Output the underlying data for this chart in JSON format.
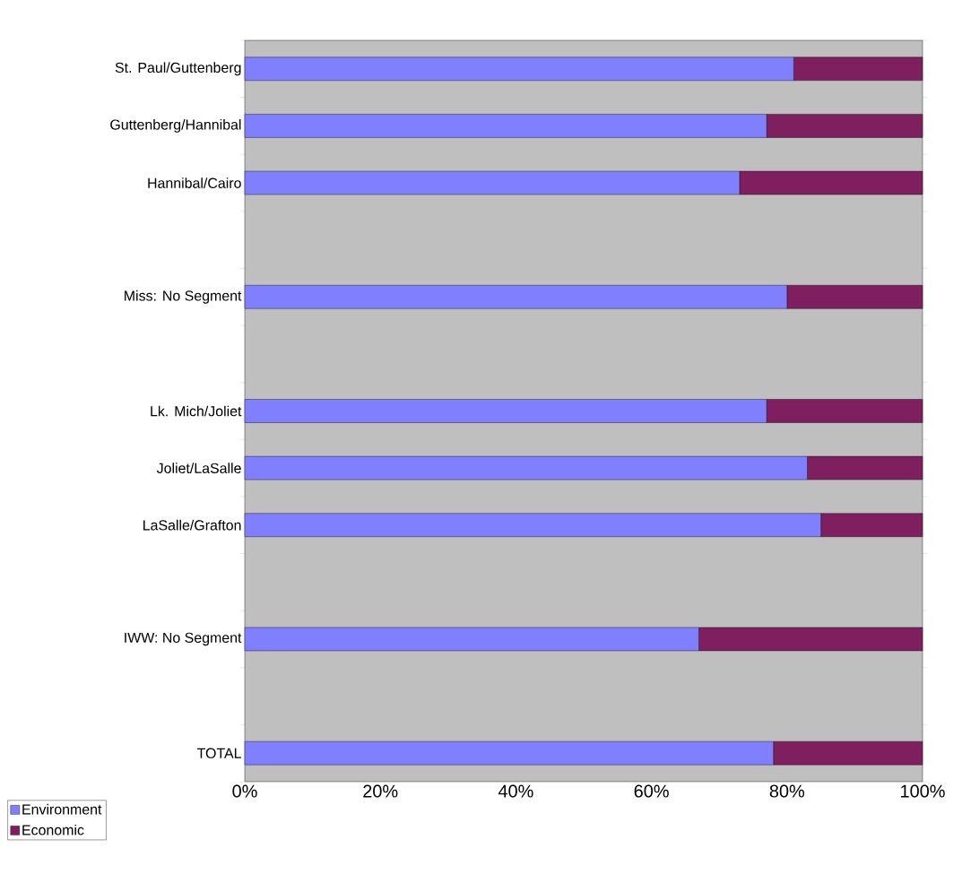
{
  "chart_data": {
    "type": "bar",
    "orientation": "horizontal",
    "stacked": true,
    "categories": [
      "St. Paul/Guttenberg",
      "Guttenberg/Hannibal",
      "Hannibal/Cairo",
      null,
      "Miss: No Segment",
      null,
      "Lk. Mich/Joliet",
      "Joliet/LaSalle",
      "LaSalle/Grafton",
      null,
      "IWW: No Segment",
      null,
      "TOTAL"
    ],
    "series": [
      {
        "name": "Environment",
        "color": "#8080ff",
        "values": [
          81,
          77,
          73,
          null,
          80,
          null,
          77,
          83,
          85,
          null,
          67,
          null,
          78
        ]
      },
      {
        "name": "Economic",
        "color": "#801f60",
        "values": [
          19,
          23,
          27,
          null,
          20,
          null,
          23,
          17,
          15,
          null,
          33,
          null,
          22
        ]
      }
    ],
    "xlim": [
      0,
      100
    ],
    "xticks": [
      {
        "value": 0,
        "label": "0%"
      },
      {
        "value": 20,
        "label": "20%"
      },
      {
        "value": 40,
        "label": "40%"
      },
      {
        "value": 60,
        "label": "60%"
      },
      {
        "value": 80,
        "label": "80%"
      },
      {
        "value": 100,
        "label": "100%"
      }
    ],
    "legend": "bottom left"
  }
}
